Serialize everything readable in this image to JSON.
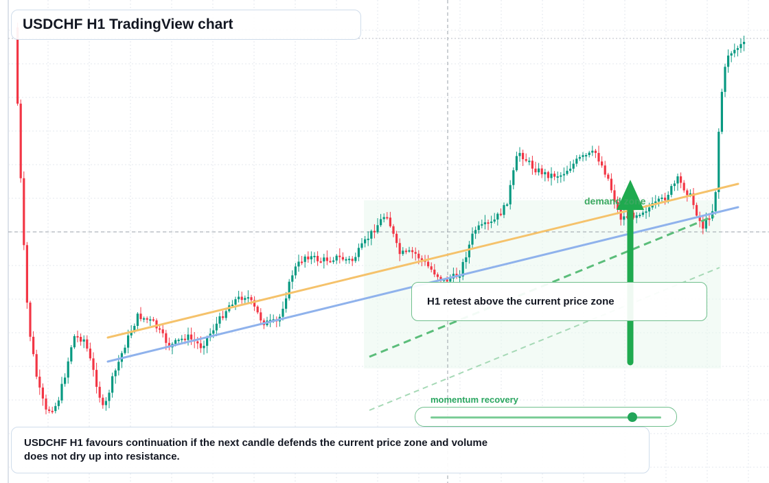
{
  "header": {
    "title": "USDCHF H1 TradingView chart"
  },
  "annotations": {
    "zone_label": "demand zone",
    "note": "H1 retest above the current price zone",
    "momentum_label": "momentum recovery",
    "momentum_level": 0.87,
    "summary": "USDCHF H1 favours continuation if the next candle defends the current price zone and volume does not dry up into resistance."
  },
  "colors": {
    "up": "#089981",
    "down": "#f23645",
    "trend_orange": "#f5c26b",
    "trend_blue": "#8fb2ec",
    "signal_green": "#1faa4f",
    "zone_fill": "#eaf7ee",
    "grid": "#e3e7ee"
  },
  "chart_data": {
    "type": "candlestick",
    "symbol": "USDCHF",
    "timeframe": "H1",
    "grid": true,
    "trendlines": [
      {
        "name": "",
        "color": "orange",
        "start": [
          0.0,
          57.0
        ],
        "end": [
          1.0,
          75.0
        ]
      },
      {
        "name": "",
        "color": "blue",
        "start": [
          0.0,
          52.0
        ],
        "end": [
          1.0,
          68.0
        ]
      }
    ]
  }
}
